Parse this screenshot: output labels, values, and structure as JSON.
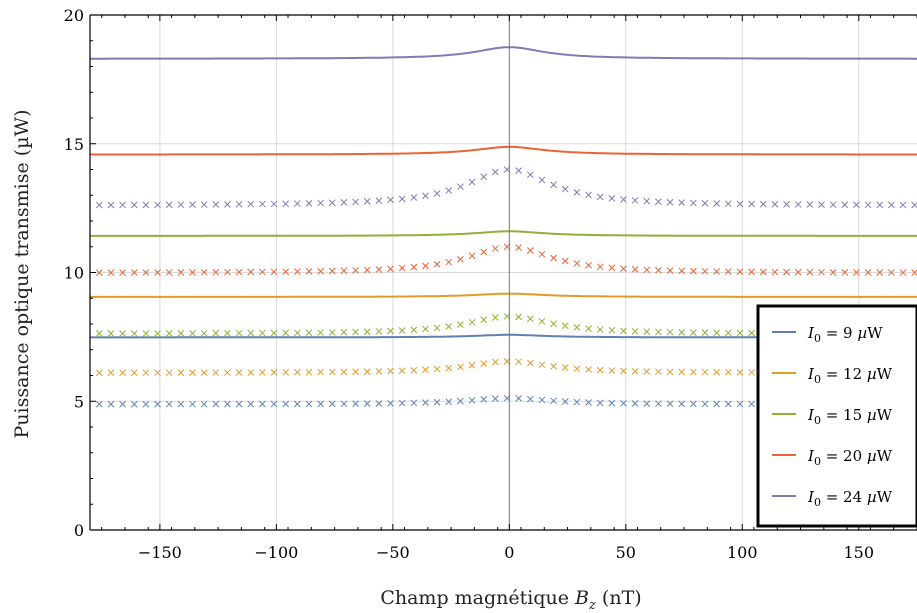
{
  "chart_data": {
    "type": "line",
    "xlabel": "Champ magnétique B_z (nT)",
    "xlabel_main": "Champ magnétique ",
    "xlabel_var": "B",
    "xlabel_sub": "z",
    "xlabel_unit": " (nT)",
    "ylabel": "Puissance optique transmise (µW)",
    "xlim": [
      -180,
      175
    ],
    "ylim": [
      0,
      20
    ],
    "xticks": [
      -150,
      -100,
      -50,
      0,
      50,
      100,
      150
    ],
    "xtick_labels": [
      "−150",
      "−100",
      "−50",
      "0",
      "50",
      "100",
      "150"
    ],
    "yticks": [
      0,
      5,
      10,
      15,
      20
    ],
    "ytick_labels": [
      "0",
      "5",
      "10",
      "15",
      "20"
    ],
    "grid": true,
    "legend_position": "bottom-right",
    "legend_labels": [
      "I0 = 9 µW",
      "I0 = 12 µW",
      "I0 = 15 µW",
      "I0 = 20 µW",
      "I0 = 24 µW"
    ],
    "series": [
      {
        "name": "I0 = 9 µW",
        "color": "#5e81b5",
        "model_baseline": 7.48,
        "model_peak": 7.58,
        "measured_baseline": 4.88,
        "measured_peak": 5.12
      },
      {
        "name": "I0 = 12 µW",
        "color": "#e19c24",
        "model_baseline": 9.05,
        "model_peak": 9.18,
        "measured_baseline": 6.1,
        "measured_peak": 6.55
      },
      {
        "name": "I0 = 15 µW",
        "color": "#8fb032",
        "model_baseline": 11.42,
        "model_peak": 11.6,
        "measured_baseline": 7.62,
        "measured_peak": 8.3
      },
      {
        "name": "I0 = 20 µW",
        "color": "#eb6235",
        "model_baseline": 14.58,
        "model_peak": 14.88,
        "measured_baseline": 9.98,
        "measured_peak": 11.0
      },
      {
        "name": "I0 = 24 µW",
        "color": "#8778b3",
        "model_baseline": 18.3,
        "model_peak": 18.75,
        "measured_baseline": 12.6,
        "measured_peak": 14.0
      }
    ]
  }
}
